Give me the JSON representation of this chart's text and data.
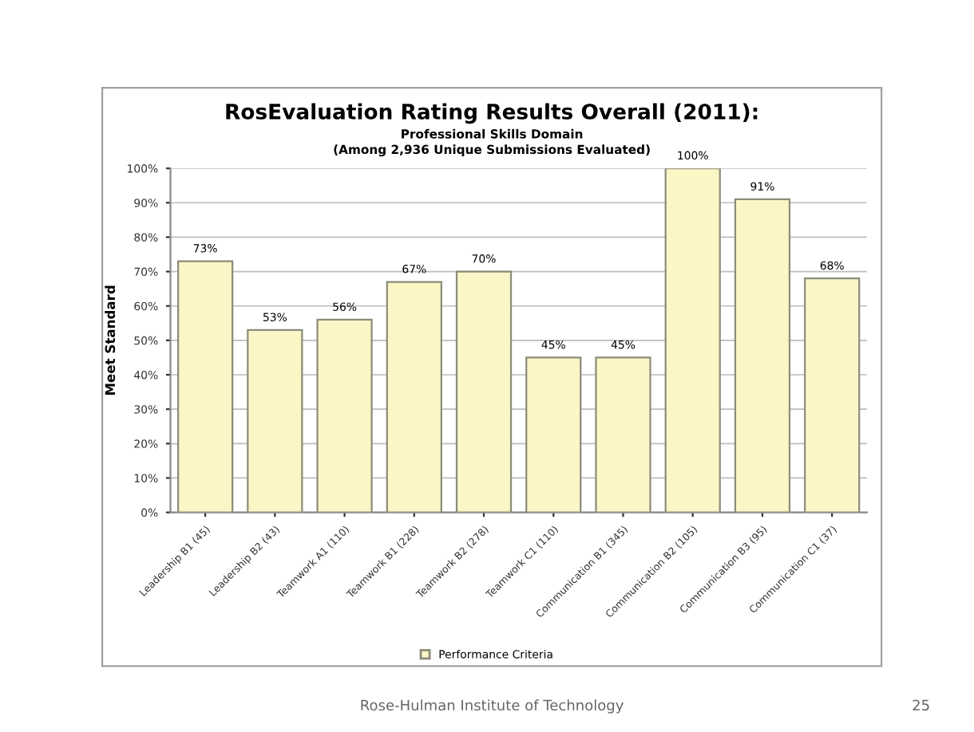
{
  "chart_data": {
    "type": "bar",
    "title": "RosEvaluation Rating Results Overall (2011):",
    "subtitle": "Professional Skills Domain\n(Among 2,936 Unique Submissions Evaluated)",
    "ylabel": "Meet Standard",
    "categories": [
      "Leadership B1 (45)",
      "Leadership B2 (43)",
      "Teamwork A1 (110)",
      "Teamwork B1 (228)",
      "Teamwork B2 (278)",
      "Teamwork C1 (110)",
      "Communication B1 (345)",
      "Communication B2 (105)",
      "Communication B3 (95)",
      "Communication C1 (37)"
    ],
    "series": [
      {
        "name": "Performance Criteria",
        "color": "#fbf6c6",
        "values": [
          73,
          53,
          56,
          67,
          70,
          45,
          45,
          100,
          91,
          68
        ],
        "value_labels": [
          "73%",
          "53%",
          "56%",
          "67%",
          "70%",
          "45%",
          "45%",
          "100%",
          "91%",
          "68%"
        ]
      }
    ],
    "ylim": [
      0,
      100
    ],
    "yticks": [
      {
        "value": 0,
        "label": "0%"
      },
      {
        "value": 10,
        "label": "10%"
      },
      {
        "value": 20,
        "label": "20%"
      },
      {
        "value": 30,
        "label": "30%"
      },
      {
        "value": 40,
        "label": "40%"
      },
      {
        "value": 50,
        "label": "50%"
      },
      {
        "value": 60,
        "label": "60%"
      },
      {
        "value": 70,
        "label": "70%"
      },
      {
        "value": 80,
        "label": "80%"
      },
      {
        "value": 90,
        "label": "90%"
      },
      {
        "value": 100,
        "label": "100%"
      }
    ],
    "grid": "y",
    "legend": "bottom",
    "annotations": [
      "Rose-Hulman Institute of Technology",
      "25"
    ]
  }
}
